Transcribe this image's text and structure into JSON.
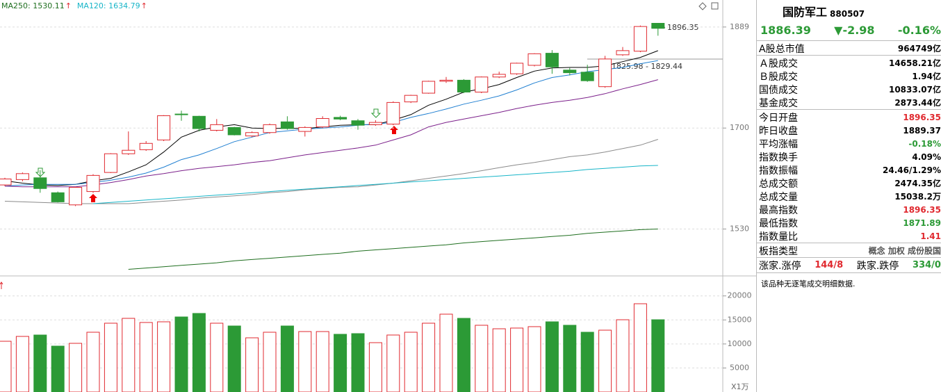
{
  "chart_data": [
    {
      "type": "candlestick",
      "categories": [
        null,
        null,
        null,
        null,
        null,
        null,
        null,
        null,
        null,
        null,
        null,
        null,
        null,
        null,
        null,
        null,
        null,
        null,
        null,
        null,
        null,
        null,
        null,
        null,
        null,
        null,
        null,
        null,
        null,
        null,
        null,
        null,
        null,
        null,
        null,
        null,
        null,
        null
      ],
      "open": [
        1602,
        1611,
        1614,
        1589,
        1569,
        1591,
        1623,
        1655,
        1662,
        1679,
        1725,
        1721,
        1696,
        1701,
        1686,
        1692,
        1711,
        1694,
        1702,
        1719,
        1713,
        1706,
        1707,
        1747,
        1763,
        1785,
        1787,
        1765,
        1793,
        1799,
        1815,
        1838,
        1806,
        1802,
        1775,
        1835,
        1842,
        1896.35
      ],
      "high": [
        1614,
        1623,
        1627,
        1591,
        1599,
        1620,
        1656,
        1694,
        1677,
        1723,
        1731,
        1722,
        1716,
        1702,
        1694,
        1708,
        1721,
        1703,
        1721,
        1722,
        1716,
        1714,
        1748,
        1760,
        1786,
        1793,
        1789,
        1794,
        1803,
        1820,
        1838,
        1844,
        1810,
        1816,
        1833,
        1850,
        1892,
        1896.35
      ],
      "low": [
        1600,
        1608,
        1589,
        1573,
        1567,
        1589,
        1622,
        1653,
        1660,
        1677,
        1713,
        1694,
        1694,
        1687,
        1684,
        1690,
        1697,
        1685,
        1700,
        1714,
        1697,
        1704,
        1705,
        1745,
        1762,
        1782,
        1763,
        1763,
        1791,
        1797,
        1813,
        1799,
        1796,
        1784,
        1773,
        1833,
        1840,
        1871.89
      ],
      "close": [
        1612,
        1621,
        1596,
        1574,
        1598,
        1618,
        1655,
        1661,
        1673,
        1722,
        1724,
        1699,
        1706,
        1688,
        1692,
        1706,
        1699,
        1701,
        1717,
        1716,
        1705,
        1710,
        1746,
        1759,
        1785,
        1787,
        1765,
        1793,
        1798,
        1819,
        1837,
        1812,
        1801,
        1786,
        1827,
        1843,
        1890,
        1886.39
      ],
      "up_color": "#e0292f",
      "down_color": "#2c9a36",
      "log": true,
      "ylim": [
        1459,
        1943
      ],
      "yticks": [
        1530,
        1700,
        1889
      ],
      "grid": true,
      "series": [
        {
          "color": "#000000",
          "values": [
            1609,
            1605,
            1602,
            1601,
            1603,
            1609,
            1613,
            1624,
            1636,
            1658,
            1684,
            1696,
            1702,
            1706,
            1700,
            1699,
            1700,
            1699,
            1702,
            1705,
            1706,
            1706,
            1714,
            1724,
            1741,
            1752,
            1765,
            1771,
            1779,
            1792,
            1804,
            1810,
            1811,
            1811,
            1814,
            1822,
            1830,
            1843
          ]
        },
        {
          "color": "#1f7fd1",
          "values": [
            1600,
            1602,
            1603,
            1603,
            1603,
            1606,
            1610,
            1615,
            1622,
            1632,
            1645,
            1653,
            1664,
            1676,
            1684,
            1692,
            1695,
            1698,
            1700,
            1702,
            1705,
            1707,
            1710,
            1719,
            1726,
            1734,
            1743,
            1750,
            1758,
            1769,
            1782,
            1792,
            1797,
            1803,
            1807,
            1811,
            1818,
            1824
          ]
        },
        {
          "color": "#7b1f8a",
          "values": [
            1600,
            1599,
            1599,
            1599,
            1599,
            1602,
            1606,
            1611,
            1617,
            1621,
            1626,
            1630,
            1633,
            1636,
            1640,
            1643,
            1648,
            1653,
            1657,
            1661,
            1665,
            1670,
            1679,
            1688,
            1702,
            1710,
            1716,
            1722,
            1728,
            1735,
            1741,
            1746,
            1750,
            1755,
            1762,
            1771,
            1779,
            1788
          ]
        },
        {
          "color": "#8a8a8a",
          "values": [
            1575,
            1574,
            1573,
            1572,
            1571,
            1571,
            1571,
            1571,
            1573,
            1575,
            1577,
            1580,
            1582,
            1584,
            1586,
            1589,
            1591,
            1594,
            1596,
            1598,
            1599,
            1602,
            1605,
            1609,
            1613,
            1617,
            1621,
            1626,
            1631,
            1636,
            1640,
            1645,
            1650,
            1653,
            1658,
            1664,
            1670,
            1680
          ]
        },
        {
          "color": "#17b5c8",
          "values": [
            null,
            null,
            null,
            null,
            null,
            1571,
            1573,
            1575,
            1577,
            1579,
            1581,
            1583,
            1585,
            1587,
            1589,
            1591,
            1593,
            1595,
            1597,
            1599,
            1601,
            1603,
            1605,
            1607,
            1609,
            1611,
            1613,
            1615,
            1617,
            1619,
            1621,
            1623,
            1625,
            1628,
            1630,
            1632,
            1634,
            1635
          ]
        },
        {
          "color": "#1e6e1e",
          "values": [
            null,
            null,
            null,
            null,
            null,
            null,
            null,
            1467,
            1469,
            1471,
            1473,
            1475,
            1477,
            1480,
            1482,
            1484,
            1486,
            1488,
            1490,
            1492,
            1495,
            1497,
            1499,
            1501,
            1503,
            1505,
            1508,
            1510,
            1512,
            1514,
            1516,
            1518,
            1520,
            1523,
            1525,
            1527,
            1529,
            1530
          ]
        }
      ],
      "legend": [
        {
          "text": "MA250: 1530.11",
          "arrow": "↑",
          "color": "#1e6e1e",
          "arrow_color": "#e0292f"
        },
        {
          "text": "MA120: 1634.79",
          "arrow": "↑",
          "color": "#17b5c8",
          "arrow_color": "#e0292f"
        }
      ],
      "annotations": [
        "1896.35",
        "1825.98 - 1829.44"
      ]
    },
    {
      "type": "bar",
      "categories": [
        null,
        null,
        null,
        null,
        null,
        null,
        null,
        null,
        null,
        null,
        null,
        null,
        null,
        null,
        null,
        null,
        null,
        null,
        null,
        null,
        null,
        null,
        null,
        null,
        null,
        null,
        null,
        null,
        null,
        null,
        null,
        null,
        null,
        null,
        null,
        null,
        null,
        null
      ],
      "values": [
        10560,
        11570,
        11860,
        9550,
        10130,
        12440,
        14320,
        15330,
        14470,
        14610,
        15620,
        16350,
        14320,
        13740,
        11280,
        12440,
        13740,
        12580,
        12580,
        12010,
        12150,
        10270,
        11860,
        12440,
        14320,
        16200,
        15330,
        13890,
        13160,
        13310,
        13600,
        14610,
        13890,
        12440,
        12870,
        15040,
        18370,
        15040
      ],
      "ylim": [
        0,
        23000
      ],
      "yticks": [
        5000,
        10000,
        15000,
        20000
      ],
      "grid": true,
      "ylabel": "X1万"
    }
  ],
  "panel": {
    "name": "国防军工",
    "code": "880507",
    "quote": {
      "price": "1886.39",
      "change": "▼-2.98",
      "percent": "-0.16%",
      "color": "#2c9a36"
    },
    "sections": [
      [
        {
          "label": "A股总市值",
          "value": "964749亿"
        }
      ],
      [
        {
          "label": "Ａ股成交",
          "value": "14658.21亿"
        },
        {
          "label": "Ｂ股成交",
          "value": "1.94亿"
        },
        {
          "label": "国债成交",
          "value": "10833.07亿"
        },
        {
          "label": "基金成交",
          "value": "2873.44亿"
        }
      ],
      [
        {
          "label": "今日开盘",
          "value": "1896.35",
          "color": "#e0292f"
        },
        {
          "label": "昨日收盘",
          "value": "1889.37"
        },
        {
          "label": "平均涨幅",
          "value": "-0.18%",
          "color": "#2c9a36"
        },
        {
          "label": "指数换手",
          "value": "4.09%"
        },
        {
          "label": "指数振幅",
          "value": "24.46/1.29%"
        },
        {
          "label": "总成交额",
          "value": "2474.35亿"
        },
        {
          "label": "总成交量",
          "value": "15038.2万"
        },
        {
          "label": "最高指数",
          "value": "1896.35",
          "color": "#e0292f"
        },
        {
          "label": "最低指数",
          "value": "1871.89",
          "color": "#2c9a36"
        },
        {
          "label": "指数量比",
          "value": "1.41",
          "color": "#e0292f"
        }
      ],
      [
        {
          "label": "板指类型",
          "value": "概念 加权 成份股国",
          "color": "#555555"
        }
      ]
    ],
    "breadth": {
      "up_label": "涨家.涨停",
      "up": "144/8",
      "up_color": "#e0292f",
      "down_label": "跌家.跌停",
      "down": "334/0",
      "down_color": "#2c9a36"
    },
    "note": "该品种无逐笔成交明细数据."
  }
}
